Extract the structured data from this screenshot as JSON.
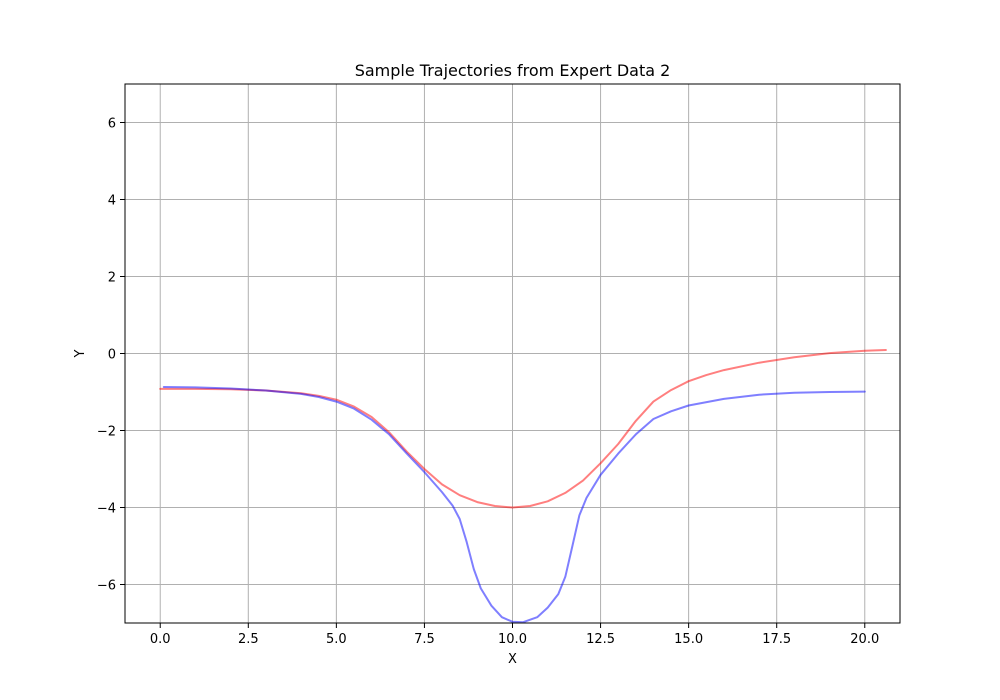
{
  "chart_data": {
    "type": "line",
    "title": "Sample Trajectories from Expert Data 2",
    "xlabel": "X",
    "ylabel": "Y",
    "xlim": [
      -1.0,
      21.0
    ],
    "ylim": [
      -7.0,
      7.0
    ],
    "xticks": [
      0.0,
      2.5,
      5.0,
      7.5,
      10.0,
      12.5,
      15.0,
      17.5,
      20.0
    ],
    "xtick_labels": [
      "0.0",
      "2.5",
      "5.0",
      "7.5",
      "10.0",
      "12.5",
      "15.0",
      "17.5",
      "20.0"
    ],
    "yticks": [
      -6,
      -4,
      -2,
      0,
      2,
      4,
      6
    ],
    "ytick_labels": [
      "−6",
      "−4",
      "−2",
      "0",
      "2",
      "4",
      "6"
    ],
    "grid": true,
    "series": [
      {
        "color": "#ff0000",
        "opacity": 0.5,
        "x": [
          0.0,
          1.0,
          2.0,
          3.0,
          4.0,
          4.5,
          5.0,
          5.5,
          6.0,
          6.5,
          7.0,
          7.5,
          8.0,
          8.5,
          9.0,
          9.5,
          10.0,
          10.5,
          11.0,
          11.5,
          12.0,
          12.5,
          13.0,
          13.5,
          14.0,
          14.5,
          15.0,
          15.5,
          16.0,
          17.0,
          18.0,
          19.0,
          20.0,
          20.6
        ],
        "y": [
          -0.92,
          -0.92,
          -0.93,
          -0.96,
          -1.03,
          -1.1,
          -1.2,
          -1.38,
          -1.65,
          -2.05,
          -2.55,
          -3.0,
          -3.4,
          -3.68,
          -3.86,
          -3.96,
          -4.0,
          -3.96,
          -3.84,
          -3.62,
          -3.3,
          -2.85,
          -2.35,
          -1.75,
          -1.25,
          -0.95,
          -0.72,
          -0.56,
          -0.43,
          -0.24,
          -0.1,
          0.01,
          0.07,
          0.09
        ]
      },
      {
        "color": "#0000ff",
        "opacity": 0.5,
        "x": [
          0.1,
          1.0,
          2.0,
          3.0,
          4.0,
          4.5,
          5.0,
          5.5,
          6.0,
          6.5,
          7.0,
          7.5,
          8.0,
          8.3,
          8.5,
          8.7,
          8.9,
          9.1,
          9.4,
          9.7,
          10.0,
          10.3,
          10.7,
          11.0,
          11.3,
          11.5,
          11.7,
          11.9,
          12.1,
          12.5,
          13.0,
          13.5,
          14.0,
          14.5,
          15.0,
          16.0,
          17.0,
          18.0,
          19.0,
          20.0
        ],
        "y": [
          -0.87,
          -0.88,
          -0.91,
          -0.96,
          -1.05,
          -1.13,
          -1.25,
          -1.43,
          -1.72,
          -2.1,
          -2.6,
          -3.08,
          -3.6,
          -3.95,
          -4.3,
          -4.9,
          -5.6,
          -6.1,
          -6.55,
          -6.85,
          -6.97,
          -6.98,
          -6.85,
          -6.6,
          -6.25,
          -5.8,
          -5.0,
          -4.2,
          -3.75,
          -3.15,
          -2.6,
          -2.1,
          -1.7,
          -1.5,
          -1.35,
          -1.18,
          -1.07,
          -1.02,
          -1.0,
          -0.99
        ]
      }
    ]
  }
}
